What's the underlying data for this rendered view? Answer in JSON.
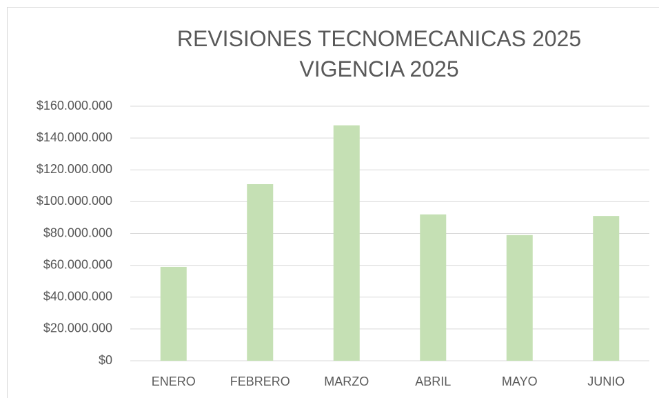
{
  "chart_data": {
    "type": "bar",
    "title": "REVISIONES TECNOMECANICAS 2025 VIGENCIA 2025",
    "categories": [
      "ENERO",
      "FEBRERO",
      "MARZO",
      "ABRIL",
      "MAYO",
      "JUNIO"
    ],
    "values": [
      59000000,
      111000000,
      148000000,
      92000000,
      79000000,
      91000000
    ],
    "color": "#c5e0b4",
    "ylim": [
      0,
      160000000
    ],
    "yticks": [
      {
        "value": 0,
        "label": "$0"
      },
      {
        "value": 20000000,
        "label": "$20.000.000"
      },
      {
        "value": 40000000,
        "label": "$40.000.000"
      },
      {
        "value": 60000000,
        "label": "$60.000.000"
      },
      {
        "value": 80000000,
        "label": "$80.000.000"
      },
      {
        "value": 100000000,
        "label": "$100.000.000"
      },
      {
        "value": 120000000,
        "label": "$120.000.000"
      },
      {
        "value": 140000000,
        "label": "$140.000.000"
      },
      {
        "value": 160000000,
        "label": "$160.000.000"
      }
    ],
    "grid": true
  }
}
